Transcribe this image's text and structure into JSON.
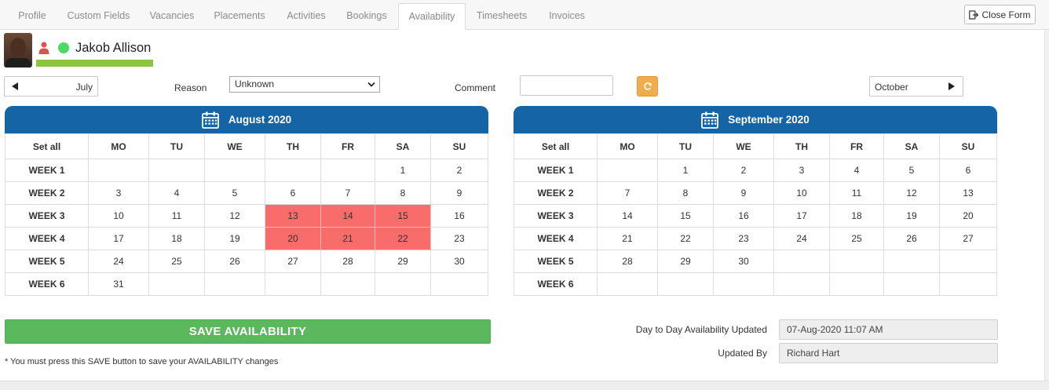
{
  "tabs": [
    {
      "label": "Profile"
    },
    {
      "label": "Custom Fields"
    },
    {
      "label": "Vacancies"
    },
    {
      "label": "Placements"
    },
    {
      "label": "Activities"
    },
    {
      "label": "Bookings"
    },
    {
      "label": "Availability",
      "active": true
    },
    {
      "label": "Timesheets"
    },
    {
      "label": "Invoices"
    }
  ],
  "close_form_label": "Close Form",
  "candidate": {
    "name": "Jakob Allison",
    "status_color": "#4cd964",
    "icons": [
      "avatar-photo",
      "person-icon",
      "status-dot"
    ]
  },
  "controls": {
    "prev_month": "July",
    "next_month": "October",
    "reason_label": "Reason",
    "reason_value": "Unknown",
    "comment_label": "Comment",
    "comment_value": ""
  },
  "calendars": [
    {
      "title": "August 2020",
      "set_all": "Set all",
      "days": [
        "MO",
        "TU",
        "WE",
        "TH",
        "FR",
        "SA",
        "SU"
      ],
      "weeks": [
        {
          "label": "WEEK 1",
          "cells": [
            "",
            "",
            "",
            "",
            "",
            "1",
            "2"
          ]
        },
        {
          "label": "WEEK 2",
          "cells": [
            "3",
            "4",
            "5",
            "6",
            "7",
            "8",
            "9"
          ]
        },
        {
          "label": "WEEK 3",
          "cells": [
            "10",
            "11",
            "12",
            "13",
            "14",
            "15",
            "16"
          ]
        },
        {
          "label": "WEEK 4",
          "cells": [
            "17",
            "18",
            "19",
            "20",
            "21",
            "22",
            "23"
          ]
        },
        {
          "label": "WEEK 5",
          "cells": [
            "24",
            "25",
            "26",
            "27",
            "28",
            "29",
            "30"
          ]
        },
        {
          "label": "WEEK 6",
          "cells": [
            "31",
            "",
            "",
            "",
            "",
            "",
            ""
          ]
        }
      ],
      "unavailable": [
        "13",
        "14",
        "15",
        "20",
        "21",
        "22"
      ]
    },
    {
      "title": "September 2020",
      "set_all": "Set all",
      "days": [
        "MO",
        "TU",
        "WE",
        "TH",
        "FR",
        "SA",
        "SU"
      ],
      "weeks": [
        {
          "label": "WEEK 1",
          "cells": [
            "",
            "1",
            "2",
            "3",
            "4",
            "5",
            "6"
          ]
        },
        {
          "label": "WEEK 2",
          "cells": [
            "7",
            "8",
            "9",
            "10",
            "11",
            "12",
            "13"
          ]
        },
        {
          "label": "WEEK 3",
          "cells": [
            "14",
            "15",
            "16",
            "17",
            "18",
            "19",
            "20"
          ]
        },
        {
          "label": "WEEK 4",
          "cells": [
            "21",
            "22",
            "23",
            "24",
            "25",
            "26",
            "27"
          ]
        },
        {
          "label": "WEEK 5",
          "cells": [
            "28",
            "29",
            "30",
            "",
            "",
            "",
            ""
          ]
        },
        {
          "label": "WEEK 6",
          "cells": [
            "",
            "",
            "",
            "",
            "",
            "",
            ""
          ]
        }
      ],
      "unavailable": []
    }
  ],
  "unavailable_color": "#f96c6c",
  "header_color": "#1565a6",
  "save": {
    "label": "SAVE AVAILABILITY",
    "note": "* You must press this SAVE button to save your AVAILABILITY changes",
    "color": "#5cb85c"
  },
  "info": {
    "updated_label": "Day to Day Availability Updated",
    "updated_value": "07-Aug-2020  11:07 AM",
    "by_label": "Updated By",
    "by_value": "Richard Hart"
  }
}
